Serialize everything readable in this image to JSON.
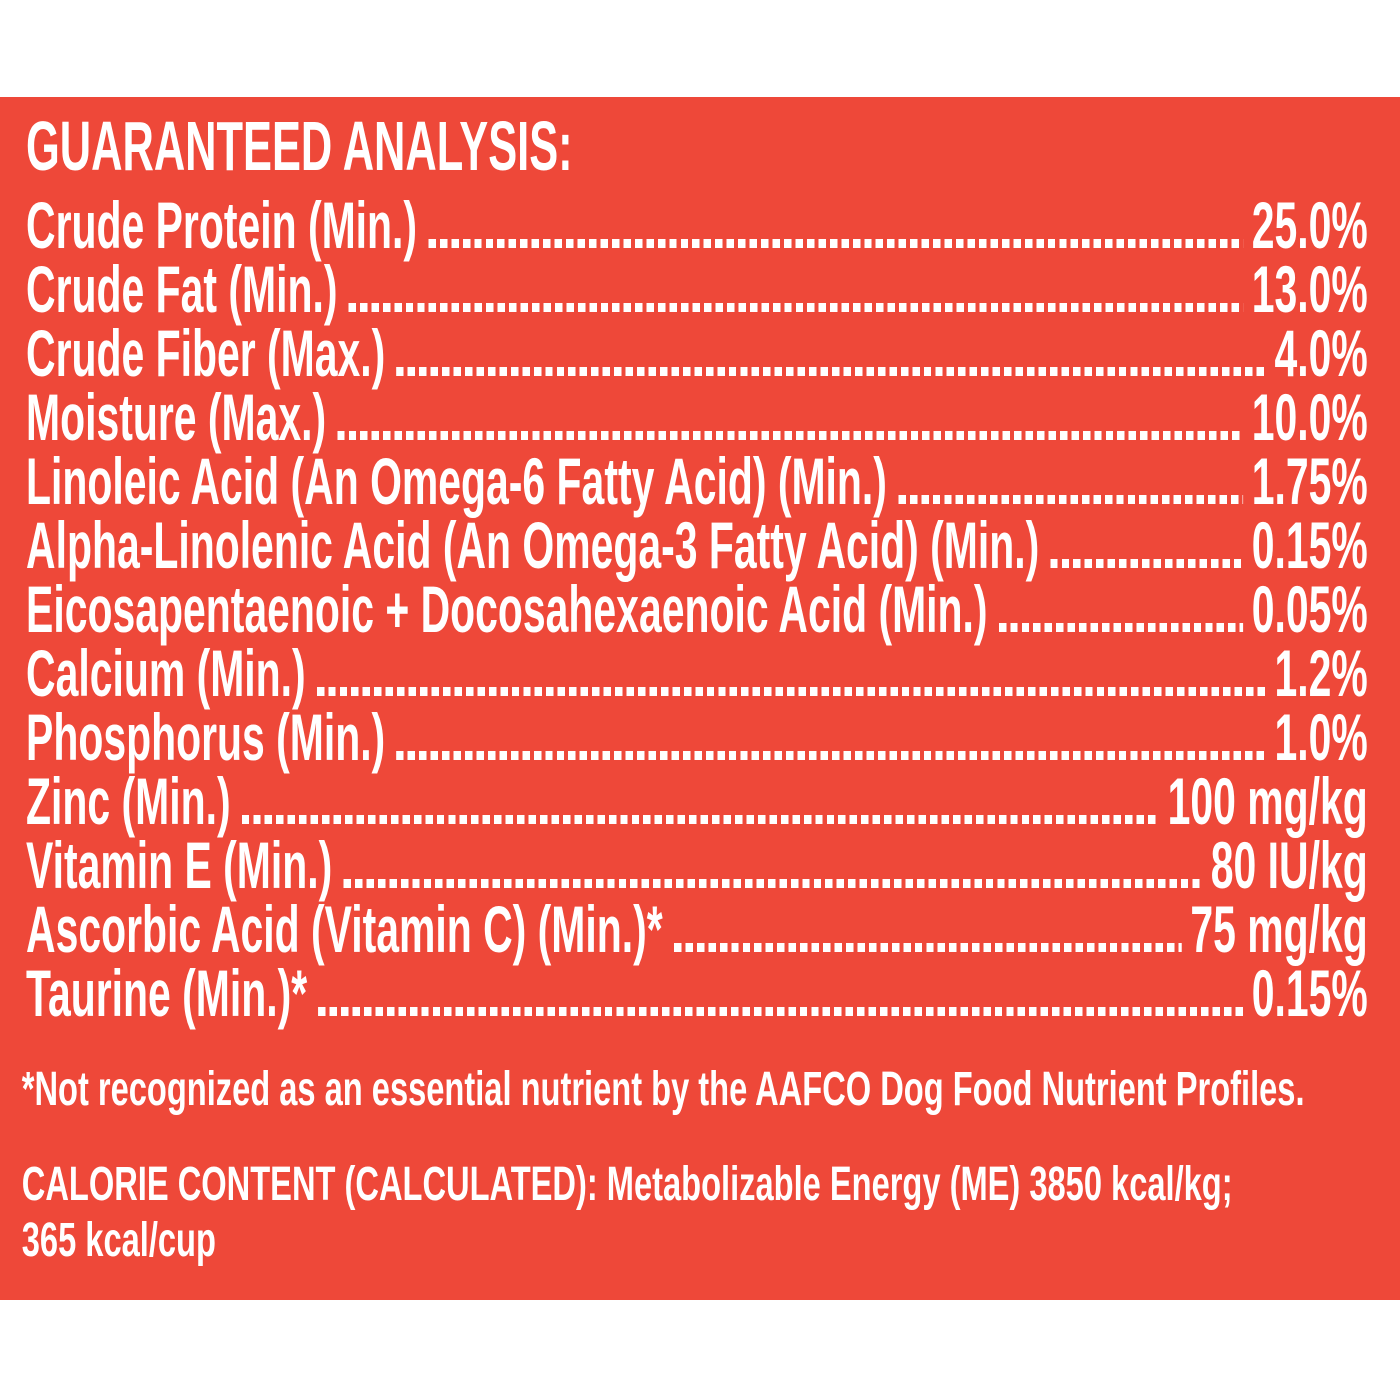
{
  "colors": {
    "panel_background": "#EE4839",
    "text": "#FFFFFF",
    "page_background": "#FFFFFF"
  },
  "title": "GUARANTEED ANALYSIS:",
  "analysis_rows": [
    {
      "label": "Crude Protein (Min.)",
      "value": "25.0%"
    },
    {
      "label": "Crude Fat (Min.)",
      "value": "13.0%"
    },
    {
      "label": "Crude Fiber (Max.)",
      "value": "4.0%"
    },
    {
      "label": "Moisture (Max.)",
      "value": "10.0%"
    },
    {
      "label": "Linoleic Acid (An Omega-6 Fatty Acid) (Min.)",
      "value": "1.75%"
    },
    {
      "label": "Alpha-Linolenic Acid (An Omega-3 Fatty Acid) (Min.)",
      "value": "0.15%"
    },
    {
      "label": "Eicosapentaenoic + Docosahexaenoic Acid (Min.)",
      "value": "0.05%"
    },
    {
      "label": "Calcium (Min.)",
      "value": "1.2%"
    },
    {
      "label": "Phosphorus (Min.)",
      "value": "1.0%"
    },
    {
      "label": "Zinc (Min.)",
      "value": "100 mg/kg"
    },
    {
      "label": "Vitamin E (Min.)",
      "value": "80 IU/kg"
    },
    {
      "label": "Ascorbic Acid (Vitamin C) (Min.)*",
      "value": "75 mg/kg"
    },
    {
      "label": "Taurine (Min.)*",
      "value": "0.15%"
    }
  ],
  "footnote": "*Not recognized as an essential nutrient by the AAFCO Dog Food Nutrient Profiles.",
  "calorie_content": {
    "line1": "CALORIE CONTENT (CALCULATED): Metabolizable Energy (ME) 3850 kcal/kg;",
    "line2": "365 kcal/cup"
  }
}
